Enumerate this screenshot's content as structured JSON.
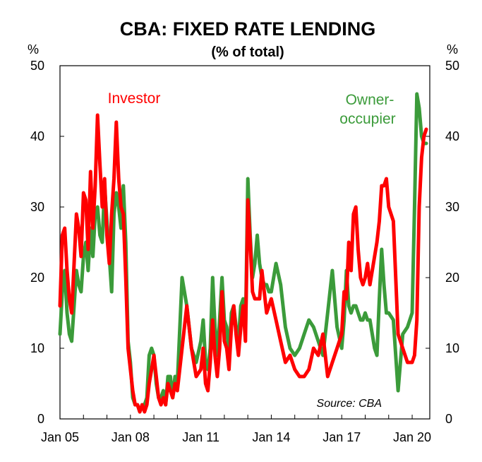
{
  "chart_data": {
    "type": "line",
    "title": "CBA: FIXED RATE LENDING",
    "subtitle": "(% of total)",
    "left_axis_unit": "%",
    "right_axis_unit": "%",
    "ylim": [
      0,
      50
    ],
    "y_ticks": [
      "0",
      "10",
      "20",
      "30",
      "40",
      "50"
    ],
    "x_ticks": [
      "Jan 05",
      "Jan 08",
      "Jan 11",
      "Jan 14",
      "Jan 17",
      "Jan 20"
    ],
    "x_tick_years": [
      2005,
      2008,
      2011,
      2014,
      2017,
      2020
    ],
    "xlim": [
      2005.0,
      2020.75
    ],
    "source": "Source: CBA",
    "series": [
      {
        "name": "Investor",
        "label": "Investor",
        "color": "#ff0000",
        "x": [
          2005.0,
          2005.1,
          2005.2,
          2005.3,
          2005.4,
          2005.5,
          2005.6,
          2005.7,
          2005.8,
          2005.9,
          2006.0,
          2006.1,
          2006.2,
          2006.3,
          2006.4,
          2006.5,
          2006.6,
          2006.7,
          2006.8,
          2006.9,
          2007.0,
          2007.1,
          2007.2,
          2007.3,
          2007.4,
          2007.5,
          2007.6,
          2007.7,
          2007.8,
          2007.9,
          2008.0,
          2008.1,
          2008.2,
          2008.3,
          2008.4,
          2008.5,
          2008.6,
          2008.7,
          2008.8,
          2008.9,
          2009.0,
          2009.1,
          2009.2,
          2009.3,
          2009.4,
          2009.5,
          2009.6,
          2009.7,
          2009.8,
          2009.9,
          2010.0,
          2010.2,
          2010.4,
          2010.6,
          2010.8,
          2011.0,
          2011.1,
          2011.2,
          2011.3,
          2011.4,
          2011.5,
          2011.6,
          2011.7,
          2011.8,
          2011.9,
          2012.0,
          2012.1,
          2012.2,
          2012.3,
          2012.4,
          2012.5,
          2012.6,
          2012.7,
          2012.8,
          2012.9,
          2013.0,
          2013.1,
          2013.2,
          2013.3,
          2013.4,
          2013.5,
          2013.6,
          2013.7,
          2013.8,
          2013.9,
          2014.0,
          2014.2,
          2014.4,
          2014.6,
          2014.8,
          2015.0,
          2015.2,
          2015.4,
          2015.6,
          2015.8,
          2016.0,
          2016.2,
          2016.4,
          2016.6,
          2016.8,
          2017.0,
          2017.1,
          2017.2,
          2017.3,
          2017.4,
          2017.5,
          2017.6,
          2017.7,
          2017.8,
          2017.9,
          2018.0,
          2018.1,
          2018.2,
          2018.3,
          2018.4,
          2018.5,
          2018.6,
          2018.7,
          2018.8,
          2018.9,
          2019.0,
          2019.2,
          2019.4,
          2019.6,
          2019.8,
          2020.0,
          2020.1,
          2020.2,
          2020.3,
          2020.4,
          2020.5,
          2020.6
        ],
        "values": [
          16,
          26,
          27,
          21,
          17,
          15,
          22,
          29,
          27,
          23,
          32,
          31,
          24,
          35,
          27,
          33,
          43,
          36,
          30,
          34,
          26,
          22,
          29,
          34,
          42,
          34,
          30,
          29,
          20,
          10,
          7,
          4,
          2,
          2,
          1,
          2,
          1,
          2,
          5,
          7,
          9,
          6,
          3,
          2,
          3,
          2,
          5,
          4,
          3,
          5,
          4,
          10,
          16,
          10,
          6,
          7,
          10,
          5,
          4,
          8,
          14,
          9,
          6,
          10,
          18,
          11,
          10,
          7,
          13,
          16,
          12,
          9,
          13,
          16,
          11,
          31,
          25,
          18,
          17,
          17,
          17,
          21,
          18,
          15,
          16,
          17,
          14,
          11,
          8,
          9,
          7,
          6,
          6,
          7,
          10,
          9,
          12,
          6,
          8,
          10,
          12,
          18,
          17,
          25,
          21,
          29,
          30,
          24,
          20,
          19,
          20,
          22,
          19,
          21,
          23,
          25,
          28,
          33,
          33,
          34,
          30,
          28,
          12,
          10,
          8,
          8,
          9,
          14,
          30,
          37,
          40,
          41
        ]
      },
      {
        "name": "Owner-occupier",
        "label": "Owner-\noccupier",
        "color": "#3b9b3a",
        "x": [
          2005.0,
          2005.1,
          2005.2,
          2005.3,
          2005.4,
          2005.5,
          2005.6,
          2005.7,
          2005.8,
          2005.9,
          2006.0,
          2006.1,
          2006.2,
          2006.3,
          2006.4,
          2006.5,
          2006.6,
          2006.7,
          2006.8,
          2006.9,
          2007.0,
          2007.1,
          2007.2,
          2007.3,
          2007.4,
          2007.5,
          2007.6,
          2007.7,
          2007.8,
          2007.9,
          2008.0,
          2008.1,
          2008.2,
          2008.3,
          2008.4,
          2008.5,
          2008.6,
          2008.7,
          2008.8,
          2008.9,
          2009.0,
          2009.1,
          2009.2,
          2009.3,
          2009.4,
          2009.5,
          2009.6,
          2009.7,
          2009.8,
          2009.9,
          2010.0,
          2010.2,
          2010.4,
          2010.6,
          2010.8,
          2011.0,
          2011.1,
          2011.2,
          2011.3,
          2011.4,
          2011.5,
          2011.6,
          2011.7,
          2011.8,
          2011.9,
          2012.0,
          2012.1,
          2012.2,
          2012.3,
          2012.4,
          2012.5,
          2012.6,
          2012.7,
          2012.8,
          2012.9,
          2013.0,
          2013.1,
          2013.2,
          2013.3,
          2013.4,
          2013.5,
          2013.6,
          2013.7,
          2013.8,
          2013.9,
          2014.0,
          2014.2,
          2014.4,
          2014.6,
          2014.8,
          2015.0,
          2015.2,
          2015.4,
          2015.6,
          2015.8,
          2016.0,
          2016.2,
          2016.4,
          2016.6,
          2016.8,
          2017.0,
          2017.1,
          2017.2,
          2017.3,
          2017.4,
          2017.5,
          2017.6,
          2017.7,
          2017.8,
          2017.9,
          2018.0,
          2018.1,
          2018.2,
          2018.3,
          2018.4,
          2018.5,
          2018.6,
          2018.7,
          2018.8,
          2018.9,
          2019.0,
          2019.2,
          2019.4,
          2019.6,
          2019.8,
          2020.0,
          2020.1,
          2020.2,
          2020.3,
          2020.4,
          2020.5,
          2020.6
        ],
        "values": [
          12,
          18,
          21,
          15,
          12,
          11,
          16,
          21,
          19,
          18,
          23,
          25,
          21,
          27,
          23,
          29,
          30,
          26,
          25,
          33,
          28,
          23,
          18,
          29,
          32,
          30,
          27,
          33,
          25,
          11,
          8,
          3,
          2,
          2,
          1,
          2,
          2,
          3,
          9,
          10,
          9,
          5,
          3,
          3,
          4,
          2,
          6,
          6,
          3,
          6,
          5,
          20,
          16,
          10,
          8,
          11,
          14,
          8,
          7,
          10,
          20,
          13,
          9,
          14,
          20,
          14,
          13,
          9,
          15,
          16,
          13,
          11,
          16,
          17,
          12,
          34,
          26,
          20,
          22,
          26,
          22,
          20,
          19,
          19,
          18,
          18,
          22,
          19,
          13,
          10,
          9,
          10,
          12,
          14,
          13,
          11,
          9,
          15,
          21,
          13,
          10,
          14,
          21,
          16,
          15,
          16,
          16,
          15,
          14,
          14,
          15,
          14,
          14,
          12,
          10,
          9,
          17,
          24,
          19,
          15,
          15,
          14,
          4,
          12,
          13,
          15,
          30,
          46,
          44,
          40,
          39,
          39
        ]
      }
    ]
  }
}
